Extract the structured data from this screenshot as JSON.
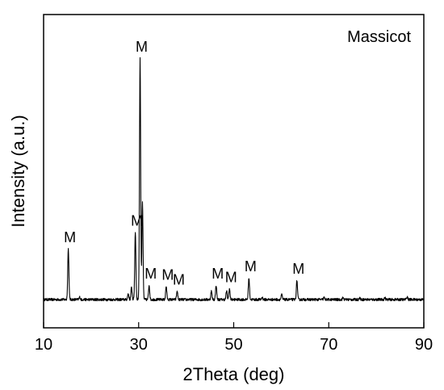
{
  "chart_data": {
    "type": "line",
    "title": "",
    "xlabel": "2Theta (deg)",
    "ylabel": "Intensity (a.u.)",
    "xlim": [
      10,
      90
    ],
    "x_ticks": [
      10,
      30,
      50,
      70,
      90
    ],
    "x_tick_labels": [
      "10",
      "30",
      "50",
      "70",
      "90"
    ],
    "y_ticks_shown": false,
    "ylim": [
      0,
      105
    ],
    "grid": false,
    "legend": {
      "text": "Massicot",
      "position": "top-right"
    },
    "baseline": 7,
    "series": [
      {
        "name": "Massicot",
        "peaks": [
          {
            "x": 15.2,
            "y": 21,
            "label": "M"
          },
          {
            "x": 17.6,
            "y": 1,
            "label": ""
          },
          {
            "x": 27.8,
            "y": 2.5,
            "label": ""
          },
          {
            "x": 28.5,
            "y": 5,
            "label": ""
          },
          {
            "x": 29.3,
            "y": 28,
            "label": "M"
          },
          {
            "x": 30.3,
            "y": 100,
            "label": "M"
          },
          {
            "x": 30.8,
            "y": 40,
            "label": ""
          },
          {
            "x": 32.2,
            "y": 6,
            "label": "M"
          },
          {
            "x": 35.8,
            "y": 5.5,
            "label": "M"
          },
          {
            "x": 38.1,
            "y": 3.5,
            "label": "M"
          },
          {
            "x": 45.3,
            "y": 3.5,
            "label": ""
          },
          {
            "x": 46.3,
            "y": 6,
            "label": "M"
          },
          {
            "x": 48.5,
            "y": 3.5,
            "label": ""
          },
          {
            "x": 49.1,
            "y": 4.5,
            "label": "M"
          },
          {
            "x": 53.2,
            "y": 9,
            "label": "M"
          },
          {
            "x": 56.0,
            "y": 1,
            "label": ""
          },
          {
            "x": 60.1,
            "y": 2,
            "label": ""
          },
          {
            "x": 63.3,
            "y": 8,
            "label": "M"
          },
          {
            "x": 69.0,
            "y": 0.8,
            "label": ""
          },
          {
            "x": 73.0,
            "y": 0.8,
            "label": ""
          },
          {
            "x": 76.5,
            "y": 0.8,
            "label": ""
          },
          {
            "x": 81.8,
            "y": 0.8,
            "label": ""
          },
          {
            "x": 86.5,
            "y": 1.2,
            "label": ""
          }
        ]
      }
    ]
  }
}
